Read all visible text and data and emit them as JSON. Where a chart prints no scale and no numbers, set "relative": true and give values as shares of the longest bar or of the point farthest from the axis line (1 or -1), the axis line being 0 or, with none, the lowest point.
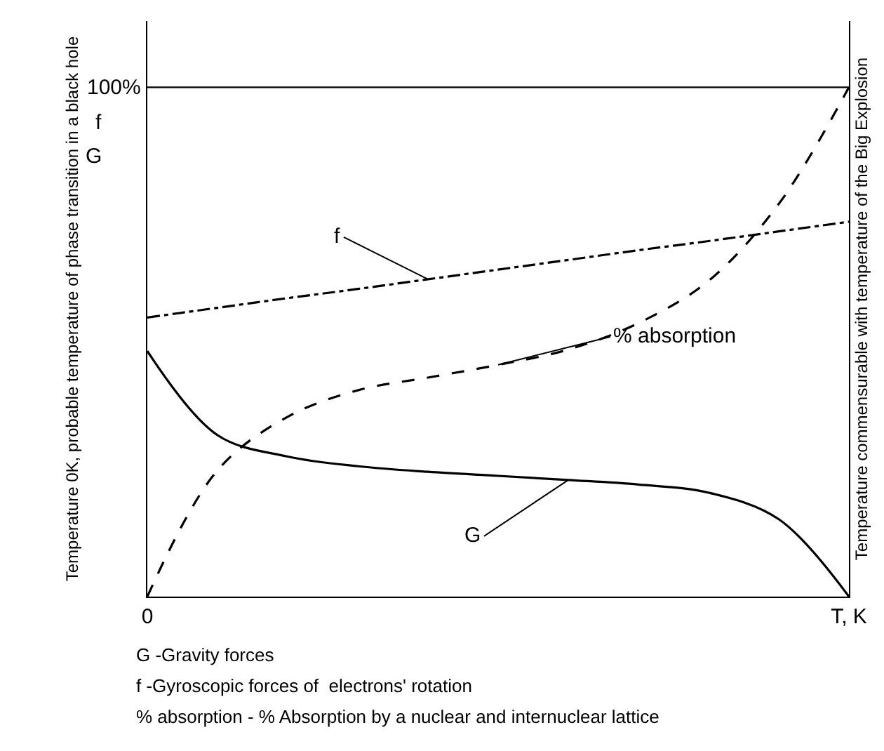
{
  "chart_data": {
    "type": "line",
    "relative": true,
    "categories": [
      "0",
      null,
      null,
      null,
      null,
      null,
      null,
      null,
      null,
      null,
      "T, K"
    ],
    "ylabel": "Temperature 0K, probable temperature of phase transition in a black hole",
    "y2label": "Temperature commensurable with temperature of the Big Explosion",
    "series": [
      {
        "name": "f",
        "color": "#000000",
        "line_style": "dashdot",
        "values": [
          0.548,
          0.567,
          0.586,
          0.604,
          0.623,
          0.642,
          0.661,
          0.68,
          0.698,
          0.717,
          0.736
        ]
      },
      {
        "name": "% absorption",
        "color": "#000000",
        "line_style": "dashed",
        "values": [
          0,
          0.248,
          0.353,
          0.405,
          0.43,
          0.455,
          0.485,
          0.537,
          0.62,
          0.771,
          1.0
        ]
      },
      {
        "name": "G",
        "color": "#000000",
        "line_style": "solid",
        "values": [
          0.482,
          0.317,
          0.275,
          0.256,
          0.245,
          0.237,
          0.229,
          0.22,
          0.204,
          0.152,
          0
        ]
      }
    ],
    "ref_lines": [
      {
        "axis": "y",
        "value": 1,
        "label": "100%",
        "color": "#000000"
      }
    ],
    "annotations": [
      "f",
      "G",
      "G -Gravity forces",
      "f -Gyroscopic forces of  electrons' rotation",
      "% absorption - % Absorption by a nuclear and internuclear lattice"
    ],
    "marker": "none",
    "legend": false
  }
}
